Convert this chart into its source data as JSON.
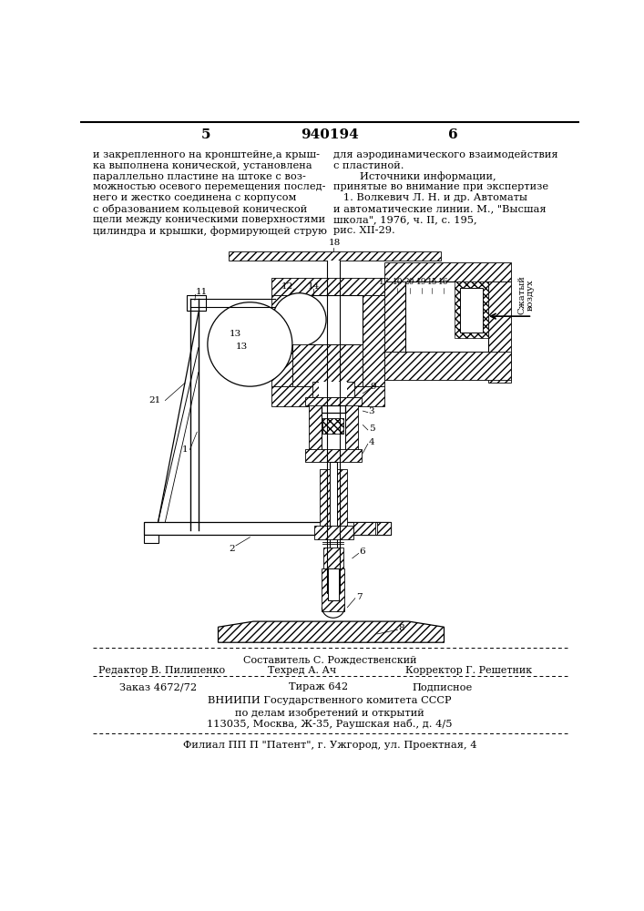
{
  "bg_color": "#ffffff",
  "page_width": 7.07,
  "page_height": 10.0,
  "header_num_left": "5",
  "header_patent": "940194",
  "header_num_right": "6",
  "text_left_lines": [
    "и закрепленного на кронштейне,а крыш-",
    "ка выполнена конической, установлена",
    "параллельно пластине на штоке с воз-",
    "можностью осевого перемещения послед-",
    "него и жестко соединена с корпусом",
    "с образованием кольцевой конической",
    "щели между коническими поверхностями",
    "цилиндра и крышки, формирующей струю"
  ],
  "text_right_lines": [
    "для аэродинамического взаимодействия",
    "с пластиной.",
    "        Источники информации,",
    "принятые во внимание при экспертизе",
    "   1. Волкевич Л. Н. и др. Автоматы",
    "и автоматические линии. М., \"Высшая",
    "школа\", 1976, ч. II, с. 195,",
    "рис. XII-29."
  ],
  "footer_sestavitel": "Составитель С. Рождественский",
  "footer_editor": "Редактор В. Пилипенко",
  "footer_tekhred": "Техред А. Ач",
  "footer_korrektor": "Корректор Г. Решетник",
  "footer_zakaz": "Заказ 4672/72",
  "footer_tirazh": "Тираж 642",
  "footer_podpisnoe": "Подписное",
  "footer_vniipи": "ВНИИПИ Государственного комитета СССР",
  "footer_po_delam": "по делам изобретений и открытий",
  "footer_address": "113035, Москва, Ж-35, Раушская наб., д. 4/5",
  "footer_filial": "Филиал ПП П \"Патент\", г. Ужгород, ул. Проектная, 4"
}
